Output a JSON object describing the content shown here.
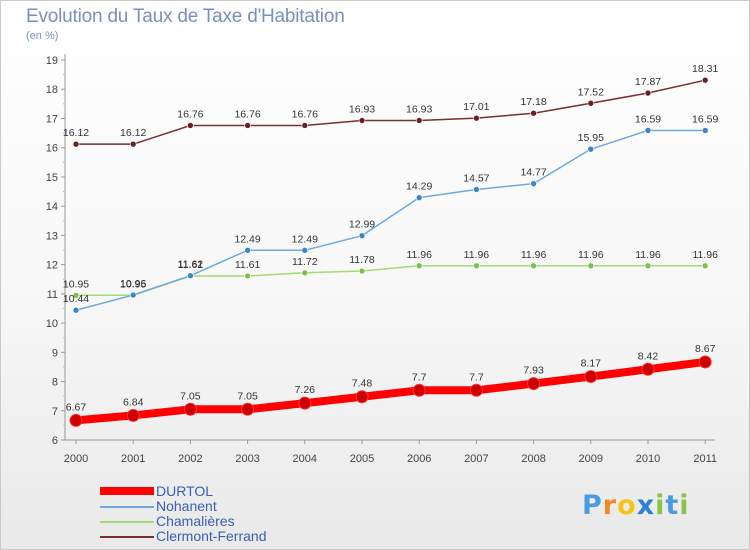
{
  "header": {
    "title": "Evolution du Taux de Taxe d'Habitation",
    "unit": "(en %)"
  },
  "brand": {
    "text": "Proxiti",
    "letter_colors": [
      "#4a9be0",
      "#f08a24",
      "#f5c518",
      "#2e7fd8",
      "#8bc34a",
      "#4a9be0",
      "#8bc34a"
    ]
  },
  "chart_data": {
    "type": "line",
    "title": "Evolution du Taux de Taxe d'Habitation",
    "ylabel": "(en %)",
    "xlabel": "",
    "x": [
      "2000",
      "2001",
      "2002",
      "2003",
      "2004",
      "2005",
      "2006",
      "2007",
      "2008",
      "2009",
      "2010",
      "2011"
    ],
    "ylim": [
      6,
      19
    ],
    "yticks": [
      6,
      7,
      8,
      9,
      10,
      11,
      12,
      13,
      14,
      15,
      16,
      17,
      18,
      19
    ],
    "grid": false,
    "legend": "bottom-left",
    "series": [
      {
        "name": "DURTOL",
        "color": "#ff0000",
        "marker_color": "#cc0000",
        "values": [
          6.67,
          6.84,
          7.05,
          7.05,
          7.26,
          7.48,
          7.7,
          7.7,
          7.93,
          8.17,
          8.42,
          8.67
        ],
        "labels": [
          "6.67",
          "6.84",
          "7.05",
          "7.05",
          "7.26",
          "7.48",
          "7.7",
          "7.7",
          "7.93",
          "8.17",
          "8.42",
          "8.67"
        ]
      },
      {
        "name": "Nohanent",
        "color": "#6fa8dc",
        "marker_color": "#3d85c6",
        "values": [
          10.44,
          10.96,
          11.62,
          12.49,
          12.49,
          12.99,
          14.29,
          14.57,
          14.77,
          15.95,
          16.59,
          16.59
        ],
        "labels": [
          "10.44",
          "10.96",
          "11.62",
          "12.49",
          "12.49",
          "12.99",
          "14.29",
          "14.57",
          "14.77",
          "15.95",
          "16.59",
          "16.59"
        ]
      },
      {
        "name": "Chamalières",
        "color": "#a3d977",
        "marker_color": "#7cc24a",
        "values": [
          10.95,
          10.95,
          11.61,
          11.61,
          11.72,
          11.78,
          11.96,
          11.96,
          11.96,
          11.96,
          11.96,
          11.96
        ],
        "labels": [
          "10.95",
          "10.95",
          "11.61",
          "11.61",
          "11.72",
          "11.78",
          "11.96",
          "11.96",
          "11.96",
          "11.96",
          "11.96",
          "11.96"
        ]
      },
      {
        "name": "Clermont-Ferrand",
        "color": "#7a2e2e",
        "marker_color": "#6b1f1f",
        "values": [
          16.12,
          16.12,
          16.76,
          16.76,
          16.76,
          16.93,
          16.93,
          17.01,
          17.18,
          17.52,
          17.87,
          18.31
        ],
        "labels": [
          "16.12",
          "16.12",
          "16.76",
          "16.76",
          "16.76",
          "16.93",
          "16.93",
          "17.01",
          "17.18",
          "17.52",
          "17.87",
          "18.31"
        ]
      }
    ]
  }
}
